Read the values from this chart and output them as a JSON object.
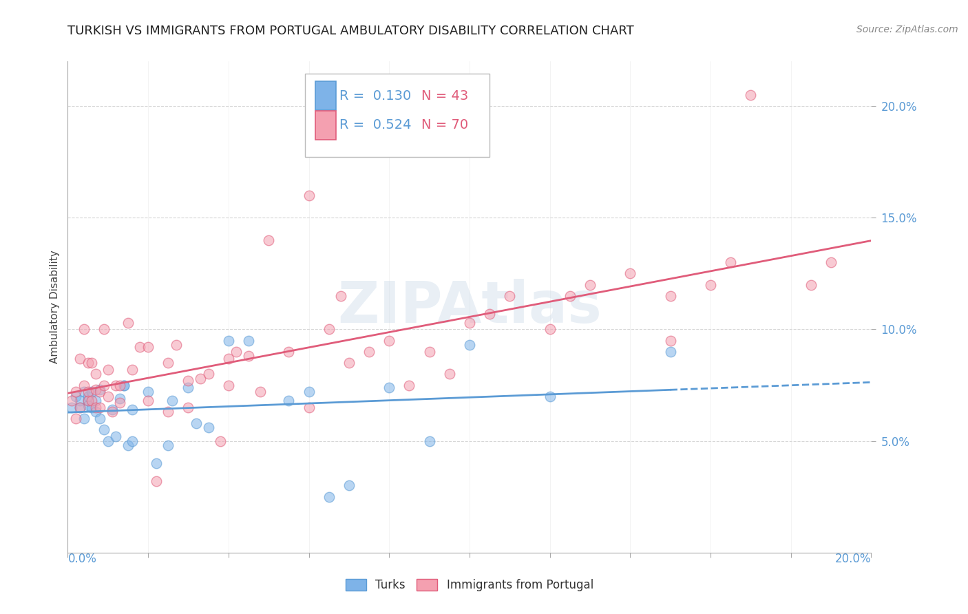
{
  "title": "TURKISH VS IMMIGRANTS FROM PORTUGAL AMBULATORY DISABILITY CORRELATION CHART",
  "source": "Source: ZipAtlas.com",
  "ylabel": "Ambulatory Disability",
  "xlabel_bottom_left": "0.0%",
  "xlabel_bottom_right": "20.0%",
  "xlim": [
    0.0,
    0.2
  ],
  "ylim": [
    0.0,
    0.22
  ],
  "yticks": [
    0.05,
    0.1,
    0.15,
    0.2
  ],
  "ytick_labels": [
    "5.0%",
    "10.0%",
    "15.0%",
    "20.0%"
  ],
  "background_color": "#ffffff",
  "watermark": "ZIPAtlas",
  "series": [
    {
      "name": "Turks",
      "R": 0.13,
      "N": 43,
      "color_scatter": "#7EB3E8",
      "color_line": "#5B9BD5",
      "line_solid_end": 0.15,
      "x": [
        0.001,
        0.002,
        0.003,
        0.003,
        0.004,
        0.004,
        0.005,
        0.005,
        0.005,
        0.006,
        0.006,
        0.007,
        0.007,
        0.008,
        0.008,
        0.009,
        0.01,
        0.011,
        0.012,
        0.013,
        0.014,
        0.014,
        0.015,
        0.016,
        0.016,
        0.02,
        0.022,
        0.025,
        0.026,
        0.03,
        0.032,
        0.035,
        0.04,
        0.045,
        0.055,
        0.06,
        0.065,
        0.07,
        0.08,
        0.09,
        0.1,
        0.12,
        0.15
      ],
      "y": [
        0.065,
        0.07,
        0.068,
        0.065,
        0.072,
        0.06,
        0.068,
        0.066,
        0.07,
        0.065,
        0.072,
        0.063,
        0.068,
        0.073,
        0.06,
        0.055,
        0.05,
        0.064,
        0.052,
        0.069,
        0.075,
        0.075,
        0.048,
        0.05,
        0.064,
        0.072,
        0.04,
        0.048,
        0.068,
        0.074,
        0.058,
        0.056,
        0.095,
        0.095,
        0.068,
        0.072,
        0.025,
        0.03,
        0.074,
        0.05,
        0.093,
        0.07,
        0.09
      ]
    },
    {
      "name": "Immigrants from Portugal",
      "R": 0.524,
      "N": 70,
      "color_scatter": "#F4A0B0",
      "color_line": "#E05C7A",
      "line_solid_end": 0.2,
      "x": [
        0.001,
        0.002,
        0.002,
        0.003,
        0.003,
        0.004,
        0.004,
        0.005,
        0.005,
        0.005,
        0.006,
        0.006,
        0.007,
        0.007,
        0.007,
        0.008,
        0.008,
        0.009,
        0.009,
        0.01,
        0.01,
        0.011,
        0.012,
        0.013,
        0.013,
        0.015,
        0.016,
        0.018,
        0.02,
        0.02,
        0.022,
        0.025,
        0.025,
        0.027,
        0.03,
        0.03,
        0.033,
        0.035,
        0.038,
        0.04,
        0.04,
        0.042,
        0.045,
        0.048,
        0.05,
        0.055,
        0.06,
        0.06,
        0.065,
        0.068,
        0.07,
        0.075,
        0.08,
        0.085,
        0.09,
        0.095,
        0.1,
        0.105,
        0.11,
        0.12,
        0.125,
        0.13,
        0.14,
        0.15,
        0.15,
        0.16,
        0.165,
        0.17,
        0.185,
        0.19
      ],
      "y": [
        0.068,
        0.072,
        0.06,
        0.065,
        0.087,
        0.075,
        0.1,
        0.068,
        0.072,
        0.085,
        0.068,
        0.085,
        0.065,
        0.073,
        0.08,
        0.072,
        0.065,
        0.1,
        0.075,
        0.07,
        0.082,
        0.063,
        0.075,
        0.067,
        0.075,
        0.103,
        0.082,
        0.092,
        0.068,
        0.092,
        0.032,
        0.085,
        0.063,
        0.093,
        0.065,
        0.077,
        0.078,
        0.08,
        0.05,
        0.087,
        0.075,
        0.09,
        0.088,
        0.072,
        0.14,
        0.09,
        0.065,
        0.16,
        0.1,
        0.115,
        0.085,
        0.09,
        0.095,
        0.075,
        0.09,
        0.08,
        0.103,
        0.107,
        0.115,
        0.1,
        0.115,
        0.12,
        0.125,
        0.115,
        0.095,
        0.12,
        0.13,
        0.205,
        0.12,
        0.13
      ]
    }
  ],
  "legend_R_color": "#5B9BD5",
  "legend_N_color": "#E05C7A",
  "title_fontsize": 13,
  "source_fontsize": 10,
  "axis_label_fontsize": 11,
  "tick_fontsize": 12,
  "legend_fontsize": 14,
  "scatter_size": 110,
  "scatter_alpha": 0.55,
  "grid_color": "#CCCCCC",
  "grid_linestyle": "--",
  "grid_alpha": 0.8,
  "right_ytick_color": "#5B9BD5",
  "bottom_xtick_color": "#5B9BD5"
}
